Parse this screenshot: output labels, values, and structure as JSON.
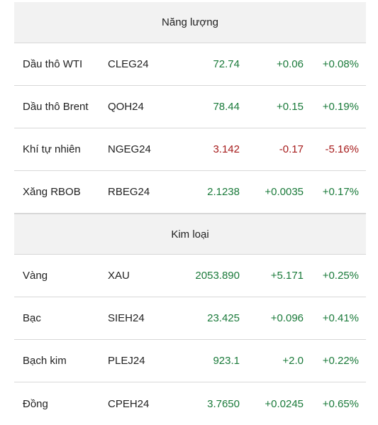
{
  "sections": [
    {
      "title": "Năng lượng",
      "rows": [
        {
          "name": "Dầu thô WTI",
          "symbol": "CLEG24",
          "price": "72.74",
          "change": "+0.06",
          "pct": "+0.08%",
          "direction": "up"
        },
        {
          "name": "Dầu thô Brent",
          "symbol": "QOH24",
          "price": "78.44",
          "change": "+0.15",
          "pct": "+0.19%",
          "direction": "up"
        },
        {
          "name": "Khí tự nhiên",
          "symbol": "NGEG24",
          "price": "3.142",
          "change": "-0.17",
          "pct": "-5.16%",
          "direction": "down"
        },
        {
          "name": "Xăng RBOB",
          "symbol": "RBEG24",
          "price": "2.1238",
          "change": "+0.0035",
          "pct": "+0.17%",
          "direction": "up"
        }
      ]
    },
    {
      "title": "Kim loại",
      "rows": [
        {
          "name": "Vàng",
          "symbol": "XAU",
          "price": "2053.890",
          "change": "+5.171",
          "pct": "+0.25%",
          "direction": "up"
        },
        {
          "name": "Bạc",
          "symbol": "SIEH24",
          "price": "23.425",
          "change": "+0.096",
          "pct": "+0.41%",
          "direction": "up"
        },
        {
          "name": "Bạch kim",
          "symbol": "PLEJ24",
          "price": "923.1",
          "change": "+2.0",
          "pct": "+0.22%",
          "direction": "up"
        },
        {
          "name": "Đồng",
          "symbol": "CPEH24",
          "price": "3.7650",
          "change": "+0.0245",
          "pct": "+0.65%",
          "direction": "up"
        }
      ]
    }
  ],
  "colors": {
    "up": "#1a7a3a",
    "down": "#a61b1b",
    "header_bg": "#f2f2f2",
    "divider": "#d8d8d8"
  }
}
